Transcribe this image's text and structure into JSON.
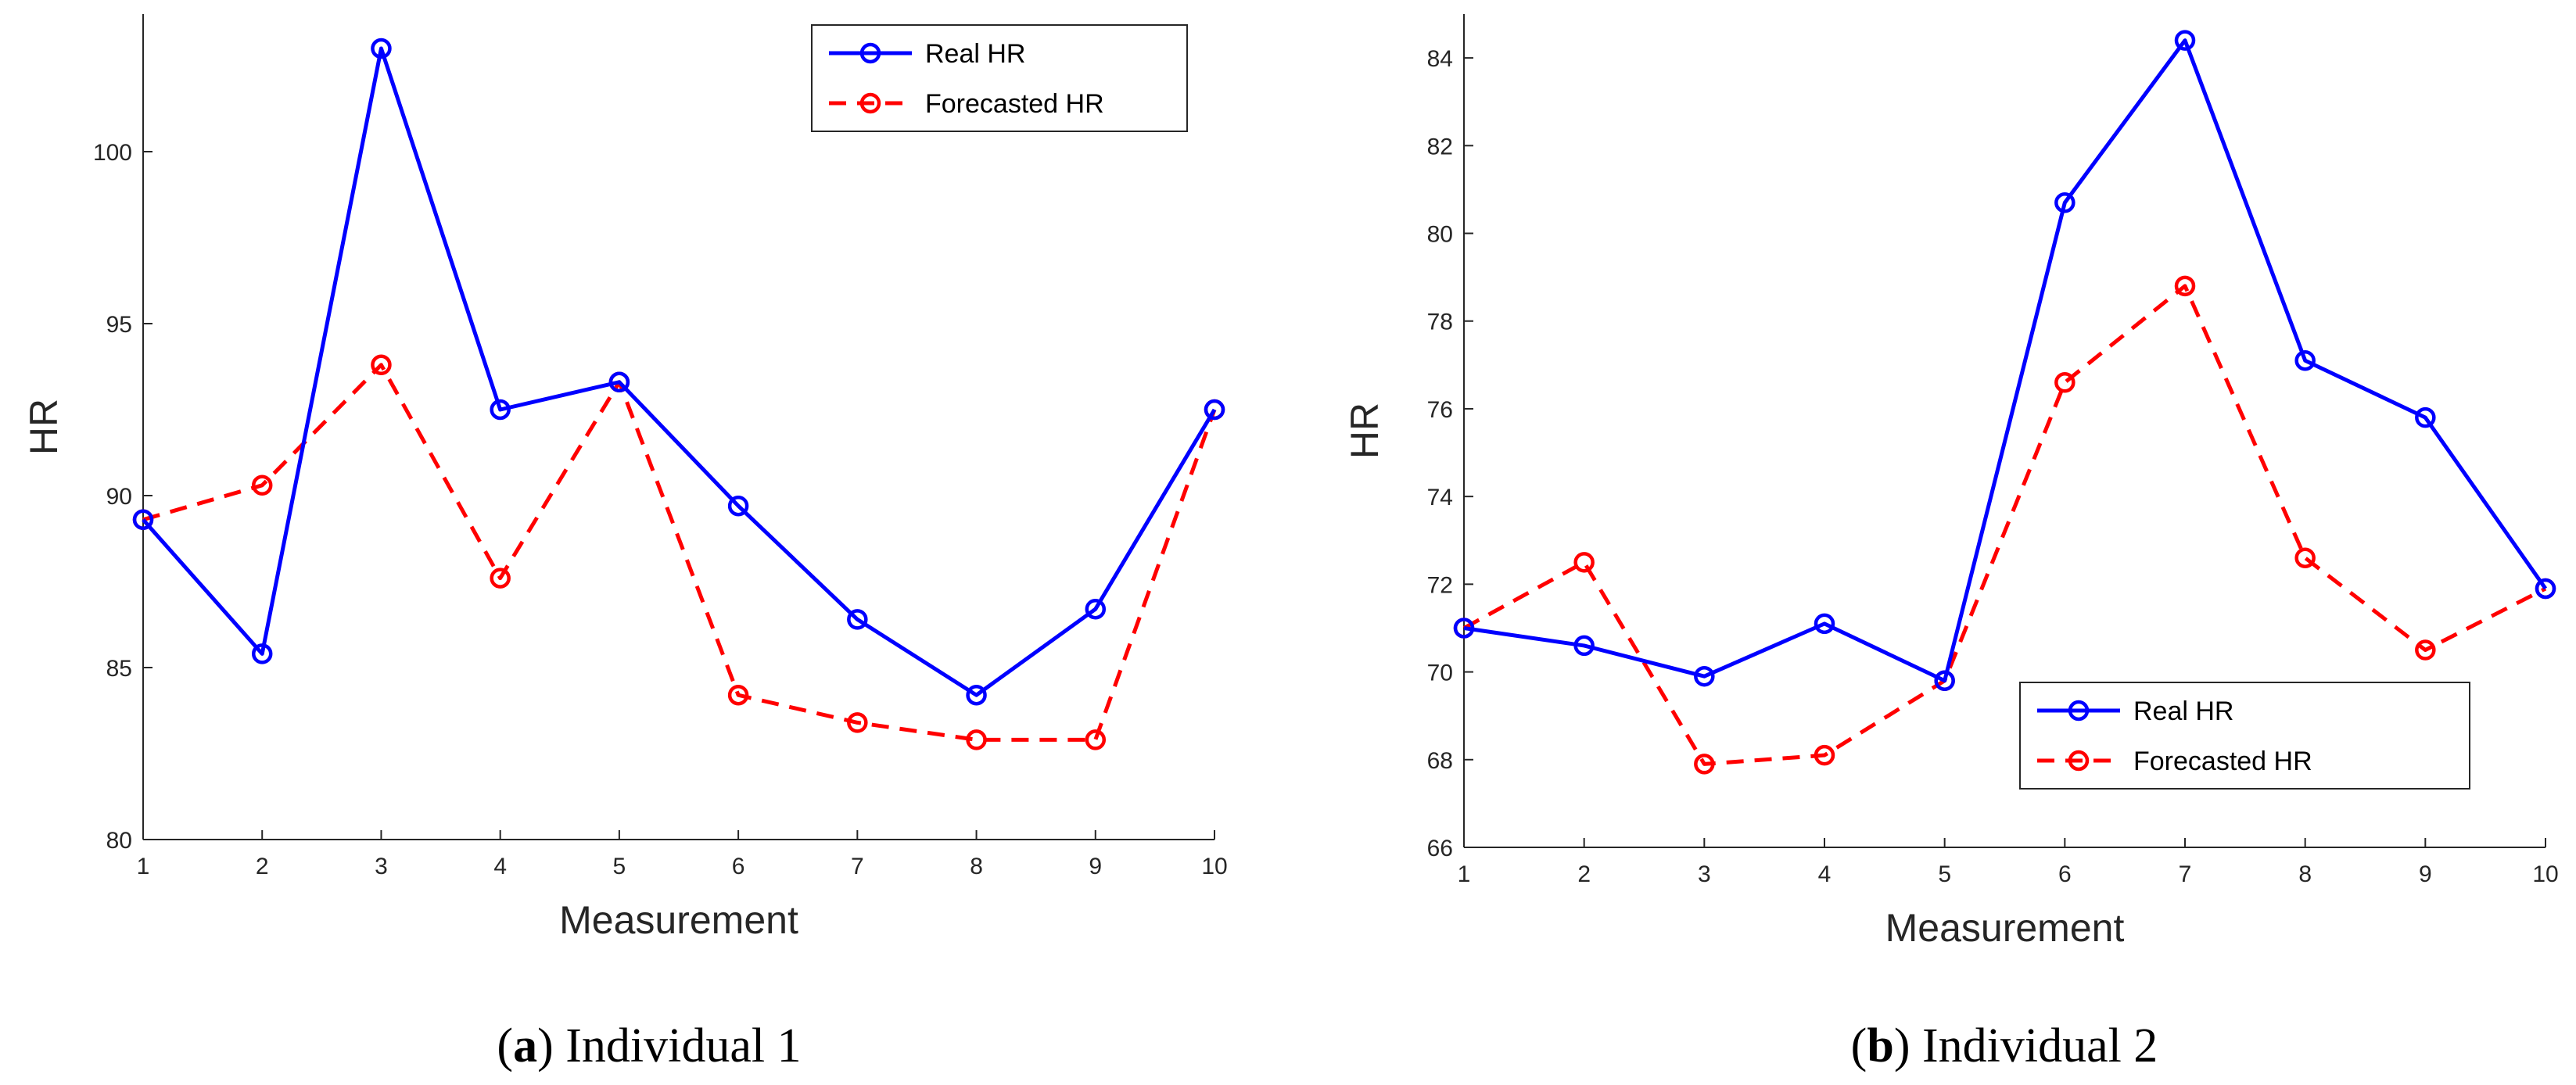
{
  "colors": {
    "real": "#0000ff",
    "forecast": "#ff0000",
    "axis": "#262626"
  },
  "chart_data": [
    {
      "type": "line",
      "caption_letter": "a",
      "caption_text": "Individual 1",
      "caption_open": "(",
      "caption_close": ")",
      "xlabel": "Measurement",
      "ylabel": "HR",
      "x": [
        1,
        2,
        3,
        4,
        5,
        6,
        7,
        8,
        9,
        10
      ],
      "xlim": [
        1,
        10
      ],
      "ylim": [
        80,
        104
      ],
      "xticks": [
        "1",
        "2",
        "3",
        "4",
        "5",
        "6",
        "7",
        "8",
        "9",
        "10"
      ],
      "yticks": [
        "80",
        "85",
        "90",
        "95",
        "100"
      ],
      "ytick_values": [
        80,
        85,
        90,
        95,
        100
      ],
      "legend_position": "top-right",
      "series": [
        {
          "name": "Real HR",
          "style": "solid",
          "values": [
            89.3,
            85.4,
            103.0,
            92.5,
            93.3,
            89.7,
            86.4,
            84.2,
            86.7,
            92.5
          ]
        },
        {
          "name": "Forecasted HR",
          "style": "dashed",
          "values": [
            89.3,
            90.3,
            93.8,
            87.6,
            93.3,
            84.2,
            83.4,
            82.9,
            82.9,
            92.5
          ]
        }
      ]
    },
    {
      "type": "line",
      "caption_letter": "b",
      "caption_text": "Individual 2",
      "caption_open": "(",
      "caption_close": ")",
      "xlabel": "Measurement",
      "ylabel": "HR",
      "x": [
        1,
        2,
        3,
        4,
        5,
        6,
        7,
        8,
        9,
        10
      ],
      "xlim": [
        1,
        10
      ],
      "ylim": [
        66,
        85
      ],
      "xticks": [
        "1",
        "2",
        "3",
        "4",
        "5",
        "6",
        "7",
        "8",
        "9",
        "10"
      ],
      "yticks": [
        "66",
        "68",
        "70",
        "72",
        "74",
        "76",
        "78",
        "80",
        "82",
        "84"
      ],
      "ytick_values": [
        66,
        68,
        70,
        72,
        74,
        76,
        78,
        80,
        82,
        84
      ],
      "legend_position": "bottom-right",
      "series": [
        {
          "name": "Real HR",
          "style": "solid",
          "values": [
            71.0,
            70.6,
            69.9,
            71.1,
            69.8,
            80.7,
            84.4,
            77.1,
            75.8,
            71.9
          ]
        },
        {
          "name": "Forecasted HR",
          "style": "dashed",
          "values": [
            71.0,
            72.5,
            67.9,
            68.1,
            69.8,
            76.6,
            78.8,
            72.6,
            70.5,
            71.9
          ]
        }
      ]
    }
  ]
}
